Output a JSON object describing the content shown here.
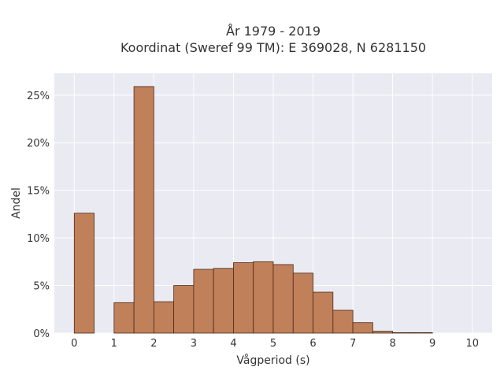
{
  "chart_data": {
    "type": "bar",
    "title_line1": "År 1979 - 2019",
    "title_line2": "Koordinat (Sweref 99 TM): E 369028, N 6281150",
    "xlabel": "Vågperiod (s)",
    "ylabel": "Andel",
    "xlim": [
      -0.5,
      10.5
    ],
    "ylim": [
      0,
      27.3
    ],
    "x_ticks": [
      "0",
      "1",
      "2",
      "3",
      "4",
      "5",
      "6",
      "7",
      "8",
      "9",
      "10"
    ],
    "y_ticks": [
      "0%",
      "5%",
      "10%",
      "15%",
      "20%",
      "25%"
    ],
    "bin_width": 0.5,
    "bins": [
      {
        "x0": 0.0,
        "value": 12.6
      },
      {
        "x0": 0.5,
        "value": 0
      },
      {
        "x0": 1.0,
        "value": 3.2
      },
      {
        "x0": 1.5,
        "value": 25.9
      },
      {
        "x0": 2.0,
        "value": 3.3
      },
      {
        "x0": 2.5,
        "value": 5.0
      },
      {
        "x0": 3.0,
        "value": 6.7
      },
      {
        "x0": 3.5,
        "value": 6.8
      },
      {
        "x0": 4.0,
        "value": 7.4
      },
      {
        "x0": 4.5,
        "value": 7.5
      },
      {
        "x0": 5.0,
        "value": 7.2
      },
      {
        "x0": 5.5,
        "value": 6.3
      },
      {
        "x0": 6.0,
        "value": 4.3
      },
      {
        "x0": 6.5,
        "value": 2.4
      },
      {
        "x0": 7.0,
        "value": 1.1
      },
      {
        "x0": 7.5,
        "value": 0.2
      },
      {
        "x0": 8.0,
        "value": 0.05
      },
      {
        "x0": 8.5,
        "value": 0.05
      }
    ],
    "grid": true,
    "bar_color": "#c0805a",
    "background": "#eaeaf2"
  }
}
